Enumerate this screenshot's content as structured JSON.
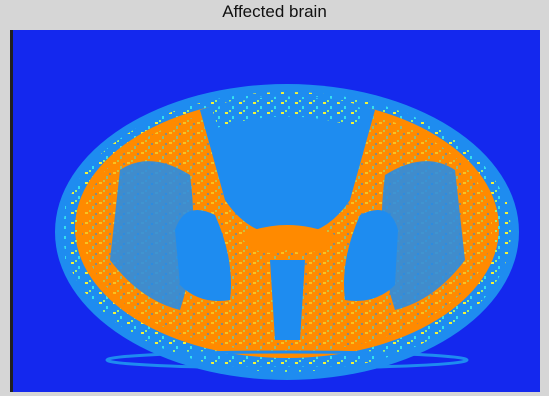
{
  "title": "Affected brain"
}
